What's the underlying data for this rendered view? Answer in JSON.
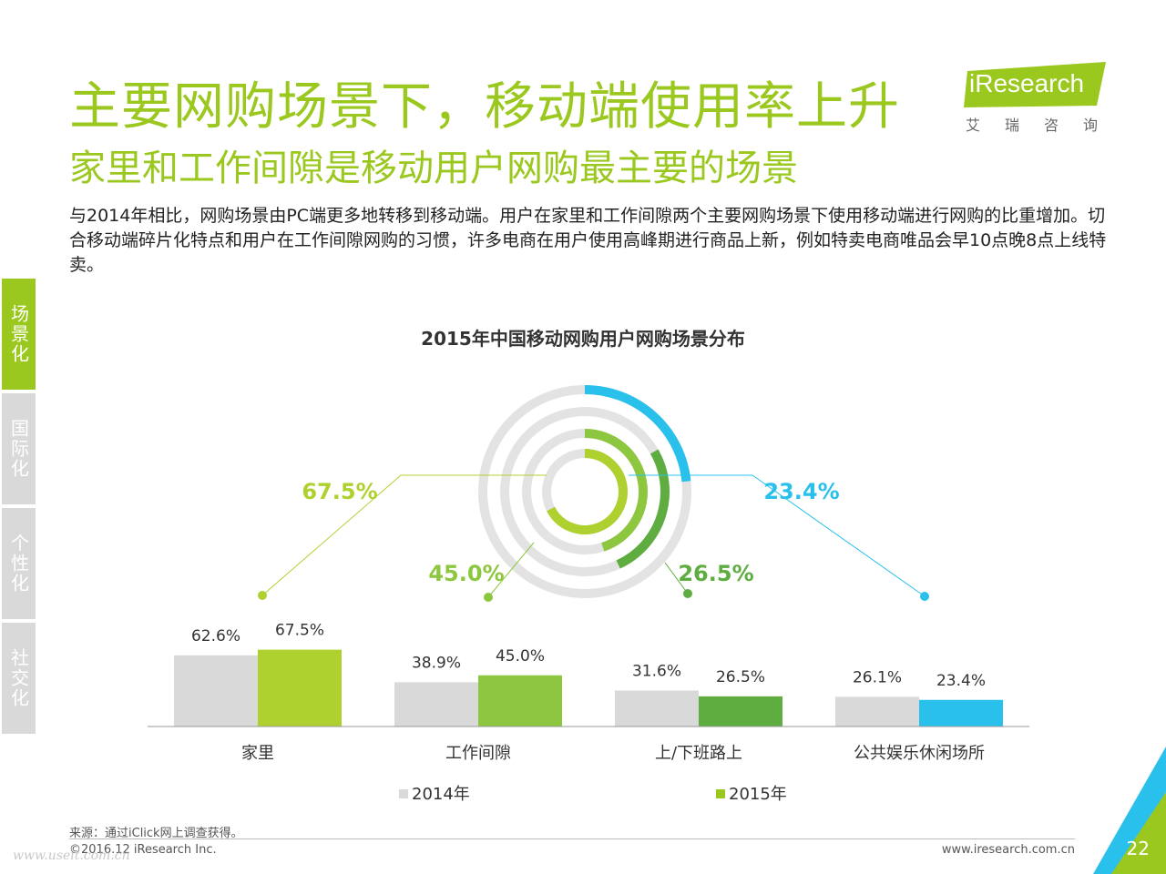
{
  "header": {
    "title": "主要网购场景下，移动端使用率上升",
    "subtitle": "家里和工作间隙是移动用户网购最主要的场景"
  },
  "logo": {
    "name": "iResearch",
    "cn": "艾瑞咨询"
  },
  "description": "与2014年相比，网购场景由PC端更多地转移到移动端。用户在家里和工作间隙两个主要网购场景下使用移动端进行网购的比重增加。切合移动端碎片化特点和用户在工作间隙网购的习惯，许多电商在用户使用高峰期进行商品上新，例如特卖电商唯品会早10点晚8点上线特卖。",
  "side_tabs": [
    {
      "label": "场景化",
      "active": true
    },
    {
      "label": "国际化",
      "active": false
    },
    {
      "label": "个性化",
      "active": false
    },
    {
      "label": "社交化",
      "active": false
    }
  ],
  "chart_data": {
    "type": "bar",
    "title": "2015年中国移动网购用户网购场景分布",
    "categories": [
      "家里",
      "工作间隙",
      "上/下班路上",
      "公共娱乐休闲场所"
    ],
    "series": [
      {
        "name": "2014年",
        "values": [
          62.6,
          38.9,
          31.6,
          26.1
        ],
        "labels": [
          "62.6%",
          "38.9%",
          "31.6%",
          "26.1%"
        ],
        "color": "#d9d9d9"
      },
      {
        "name": "2015年",
        "values": [
          67.5,
          45.0,
          26.5,
          23.4
        ],
        "labels": [
          "67.5%",
          "45.0%",
          "26.5%",
          "23.4%"
        ],
        "colors": [
          "#afd12f",
          "#8dc63f",
          "#5fad41",
          "#29c1ec"
        ]
      }
    ],
    "ring_callouts": [
      "67.5%",
      "45.0%",
      "26.5%",
      "23.4%"
    ],
    "ring_colors": [
      "#afd12f",
      "#8dc63f",
      "#5fad41",
      "#29c1ec"
    ],
    "legend_color_2015": "#9bc81e",
    "ylim": [
      0,
      100
    ]
  },
  "footer": {
    "source": "来源：通过iClick网上调查获得。",
    "copyright": "©2016.12 iResearch Inc.",
    "website": "www.iresearch.com.cn",
    "page": "22",
    "watermark": "www.useit.com.cn"
  },
  "colors": {
    "brand_green": "#9bc81e",
    "gray": "#d9d9d9",
    "blue": "#29c1ec"
  }
}
